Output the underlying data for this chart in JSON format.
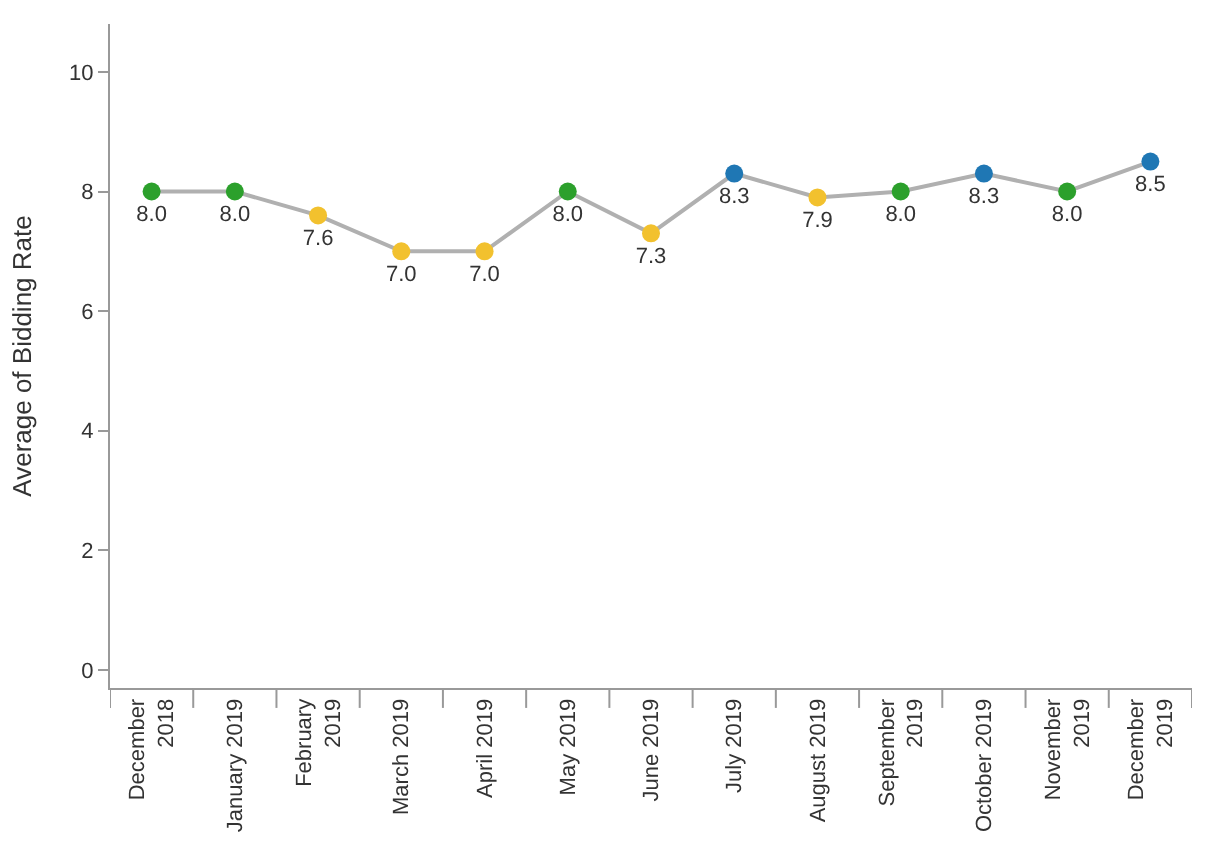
{
  "chart_data": {
    "type": "line",
    "ylabel": "Average of Bidding Rate",
    "categories": [
      "December 2018",
      "January 2019",
      "February 2019",
      "March 2019",
      "April 2019",
      "May 2019",
      "June 2019",
      "July 2019",
      "August 2019",
      "September 2019",
      "October 2019",
      "November 2019",
      "December 2019"
    ],
    "series": [
      {
        "color": "#b0b0b0",
        "values": [
          8.0,
          8.0,
          7.6,
          7.0,
          7.0,
          8.0,
          7.3,
          8.3,
          7.9,
          8.0,
          8.3,
          8.0,
          8.5
        ],
        "value_labels": [
          "8.0",
          "8.0",
          "7.6",
          "7.0",
          "7.0",
          "8.0",
          "7.3",
          "8.3",
          "7.9",
          "8.0",
          "8.3",
          "8.0",
          "8.5"
        ],
        "colors": [
          "#2ca02c",
          "#2ca02c",
          "#f2c12e",
          "#f2c12e",
          "#f2c12e",
          "#2ca02c",
          "#f2c12e",
          "#1f77b4",
          "#f2c12e",
          "#2ca02c",
          "#1f77b4",
          "#2ca02c",
          "#1f77b4"
        ]
      }
    ],
    "ylim": [
      -0.3,
      10.8
    ],
    "yticks": [
      0,
      2,
      4,
      6,
      8,
      10
    ],
    "marker": "circle",
    "line_style": "solid",
    "legend": false
  }
}
